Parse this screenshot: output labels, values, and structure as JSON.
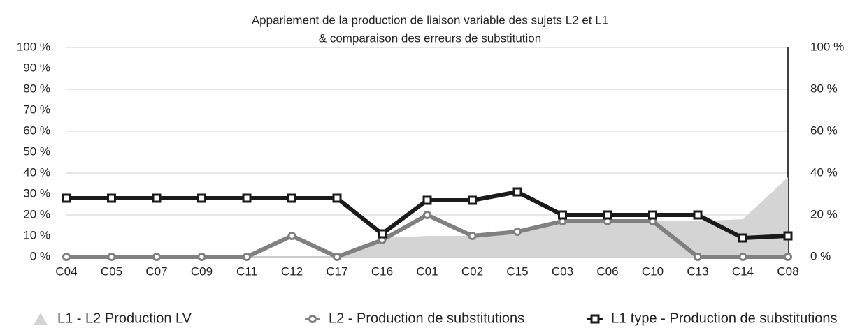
{
  "chart_data": {
    "type": "line",
    "title": [
      "Appariement de la production de liaison variable des sujets L2 et L1",
      "& comparaison des erreurs de substitution"
    ],
    "categories": [
      "C04",
      "C05",
      "C07",
      "C09",
      "C11",
      "C12",
      "C17",
      "C16",
      "C01",
      "C02",
      "C15",
      "C03",
      "C06",
      "C10",
      "C13",
      "C14",
      "C08"
    ],
    "series": [
      {
        "name": "L1 - L2 Production LV",
        "kind": "area",
        "color": "#d4d4d4",
        "values": [
          0,
          0,
          0,
          0,
          0,
          0,
          0,
          9,
          10,
          10,
          12,
          17,
          17,
          17,
          17,
          18,
          38
        ]
      },
      {
        "name": "L2 - Production de substitutions",
        "kind": "line",
        "marker": "circle",
        "color": "#808080",
        "values": [
          0,
          0,
          0,
          0,
          0,
          10,
          0,
          8,
          20,
          10,
          12,
          17,
          17,
          17,
          0,
          0,
          0
        ]
      },
      {
        "name": "L1 type - Production de substitutions",
        "kind": "line",
        "marker": "square",
        "color": "#1a1a1a",
        "values": [
          28,
          28,
          28,
          28,
          28,
          28,
          28,
          11,
          27,
          27,
          31,
          20,
          20,
          20,
          20,
          9,
          10
        ]
      }
    ],
    "ylim": [
      0,
      100
    ],
    "yticks": [
      {
        "value": 0,
        "label": "0 %"
      },
      {
        "value": 10,
        "label": "10 %"
      },
      {
        "value": 20,
        "label": "20 %"
      },
      {
        "value": 30,
        "label": "30 %"
      },
      {
        "value": 40,
        "label": "40 %"
      },
      {
        "value": 50,
        "label": "50 %"
      },
      {
        "value": 60,
        "label": "60 %"
      },
      {
        "value": 70,
        "label": "70 %"
      },
      {
        "value": 80,
        "label": "80 %"
      },
      {
        "value": 90,
        "label": "90 %"
      },
      {
        "value": 100,
        "label": "100 %"
      }
    ],
    "y2lim": [
      0,
      100
    ],
    "y2ticks": [
      {
        "value": 0,
        "label": "0 %"
      },
      {
        "value": 20,
        "label": "20 %"
      },
      {
        "value": 40,
        "label": "40 %"
      },
      {
        "value": 60,
        "label": "60 %"
      },
      {
        "value": 80,
        "label": "80 %"
      },
      {
        "value": 100,
        "label": "100 %"
      }
    ],
    "grid": true,
    "legend": "bottom"
  }
}
